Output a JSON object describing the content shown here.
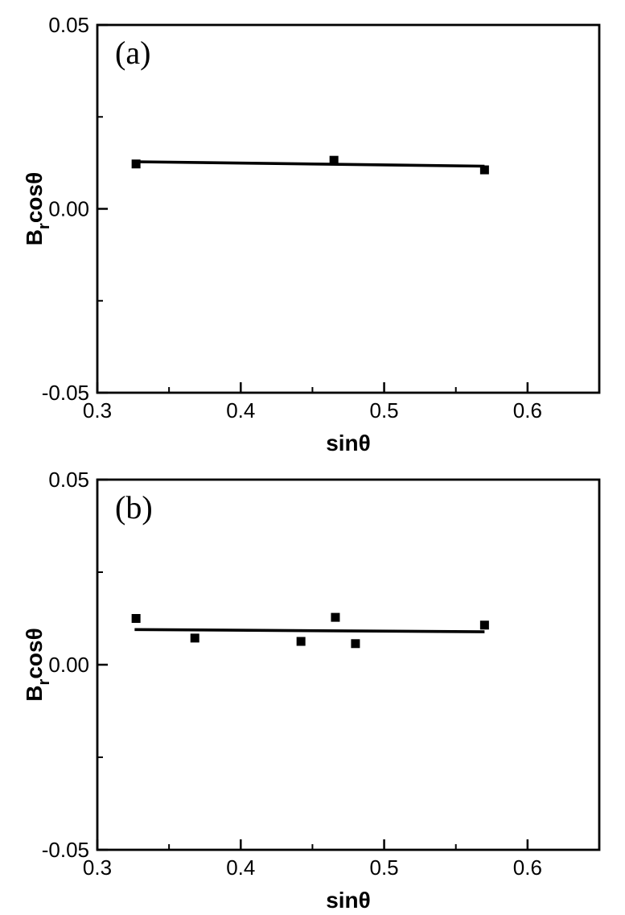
{
  "figure": {
    "background": "#ffffff",
    "ink_color": "#000000"
  },
  "chart_data": [
    {
      "type": "scatter",
      "panel_label": "(a)",
      "xlabel": "sinθ",
      "ylabel_base": "B",
      "ylabel_sub": "r",
      "ylabel_rest": "cosθ",
      "xlim": [
        0.3,
        0.65
      ],
      "ylim": [
        -0.05,
        0.05
      ],
      "x_major_ticks": [
        0.3,
        0.4,
        0.5,
        0.6
      ],
      "x_tick_labels": [
        "0.3",
        "0.4",
        "0.5",
        "0.6"
      ],
      "x_minor_ticks": [
        0.35,
        0.45,
        0.55,
        0.65
      ],
      "y_major_ticks": [
        0.05,
        0.0,
        -0.05
      ],
      "y_tick_labels": [
        "0.05",
        "0.00",
        "-0.05"
      ],
      "y_minor_ticks": [
        0.025,
        -0.025
      ],
      "marker": "filled-square",
      "points": [
        [
          0.327,
          0.0122
        ],
        [
          0.465,
          0.0132
        ],
        [
          0.57,
          0.0106
        ]
      ],
      "fit_line": {
        "x1": 0.327,
        "y1": 0.0128,
        "x2": 0.57,
        "y2": 0.0116
      },
      "grid": "off",
      "legend": null
    },
    {
      "type": "scatter",
      "panel_label": "(b)",
      "xlabel": "sinθ",
      "ylabel_base": "B",
      "ylabel_sub": "r",
      "ylabel_rest": "cosθ",
      "xlim": [
        0.3,
        0.65
      ],
      "ylim": [
        -0.05,
        0.05
      ],
      "x_major_ticks": [
        0.3,
        0.4,
        0.5,
        0.6
      ],
      "x_tick_labels": [
        "0.3",
        "0.4",
        "0.5",
        "0.6"
      ],
      "x_minor_ticks": [
        0.35,
        0.45,
        0.55,
        0.65
      ],
      "y_major_ticks": [
        0.05,
        0.0,
        -0.05
      ],
      "y_tick_labels": [
        "0.05",
        "0.00",
        "-0.05"
      ],
      "y_minor_ticks": [
        0.025,
        -0.025
      ],
      "marker": "filled-square",
      "points": [
        [
          0.327,
          0.0125
        ],
        [
          0.368,
          0.0072
        ],
        [
          0.442,
          0.0063
        ],
        [
          0.466,
          0.0128
        ],
        [
          0.48,
          0.0057
        ],
        [
          0.57,
          0.0107
        ]
      ],
      "fit_line": {
        "x1": 0.326,
        "y1": 0.0095,
        "x2": 0.57,
        "y2": 0.0089
      },
      "grid": "off",
      "legend": null
    }
  ]
}
